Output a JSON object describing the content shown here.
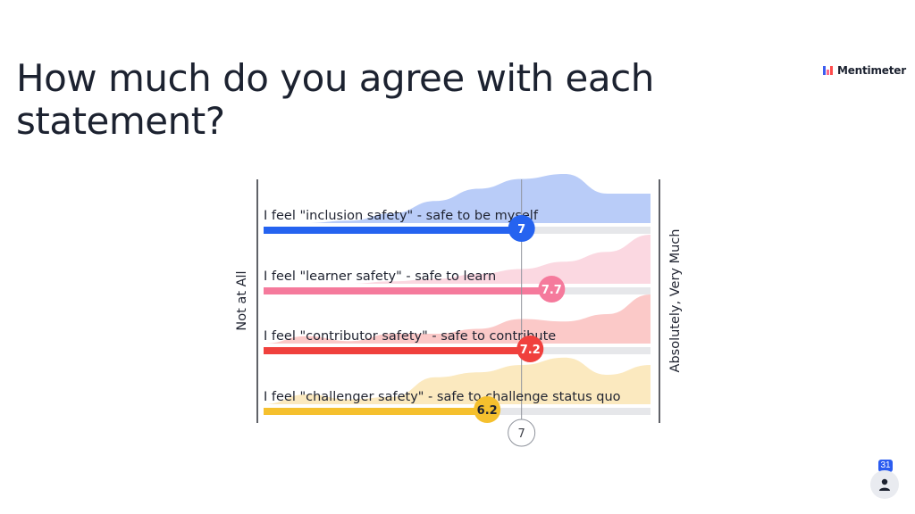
{
  "slide": {
    "title": "How much do you agree with each statement?"
  },
  "brand": {
    "name": "Mentimeter"
  },
  "participants": {
    "count": "31",
    "icon": "person-icon"
  },
  "chart_data": {
    "type": "scale",
    "xlim": [
      1,
      10
    ],
    "min_label": "Not at All",
    "max_label": "Absolutely, Very Much",
    "overall_average": 7,
    "overall_average_label": "7",
    "statements": [
      {
        "label": "I feel \"inclusion safety\" - safe to be myself",
        "value": 7,
        "value_label": "7",
        "color": "#2563f0",
        "dist_color": "#b9ccf8",
        "distribution": [
          0,
          0,
          0.05,
          0.2,
          0.45,
          0.7,
          0.9,
          1.0,
          0.6,
          0.6
        ]
      },
      {
        "label": "I feel \"learner safety\" - safe to learn",
        "value": 7.7,
        "value_label": "7.7",
        "color": "#f57a9c",
        "dist_color": "#fbd8e1",
        "distribution": [
          0,
          0,
          0,
          0.05,
          0.1,
          0.2,
          0.3,
          0.45,
          0.65,
          1.0
        ]
      },
      {
        "label": "I feel \"contributor safety\" - safe to contribute",
        "value": 7.2,
        "value_label": "7.2",
        "color": "#f0403d",
        "dist_color": "#fbc9c8",
        "distribution": [
          0,
          0.15,
          0.05,
          0.2,
          0.2,
          0.3,
          0.5,
          0.45,
          0.6,
          1.0
        ]
      },
      {
        "label": "I feel \"challenger safety\" - safe to challenge status quo",
        "value": 6.2,
        "value_label": "6.2",
        "color": "#f5c02e",
        "dist_color": "#fbe9bf",
        "distribution": [
          0,
          0.2,
          0.1,
          0.15,
          0.55,
          0.65,
          0.8,
          0.95,
          0.6,
          0.8
        ]
      }
    ]
  }
}
